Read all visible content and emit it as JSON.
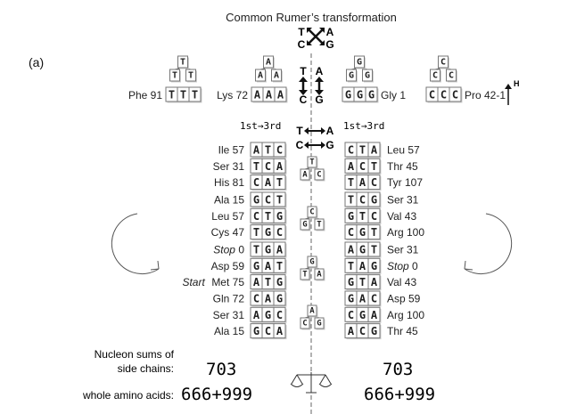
{
  "title": "Common Rumer’s transformation",
  "panel_label": "(a)",
  "title_bases": {
    "tl": "T",
    "tr": "A",
    "bl": "C",
    "br": "G"
  },
  "center_pairs": {
    "tl": "T",
    "tr": "A",
    "bl": "C",
    "br": "G"
  },
  "h_pairs": {
    "t": "T",
    "a": "A",
    "c": "C",
    "g": "G"
  },
  "h_label": "H",
  "col_header_left": "1st→3rd",
  "col_header_right": "1st→3rd",
  "top_codons": [
    {
      "label": "Phe 91",
      "codon": "TTT",
      "tree": [
        "T",
        "T",
        "T"
      ]
    },
    {
      "label": "Lys 72",
      "codon": "AAA",
      "tree": [
        "A",
        "A",
        "A"
      ]
    },
    {
      "label": "Gly 1",
      "codon": "GGG",
      "tree": [
        "G",
        "G",
        "G"
      ]
    },
    {
      "label": "Pro 42-1",
      "codon": "CCC",
      "tree": [
        "C",
        "C",
        "C"
      ]
    }
  ],
  "groups": [
    {
      "rows": [
        {
          "l_pre": "",
          "l_name": "Ile 57",
          "l_codon": "ATC",
          "r_codon": "CTA",
          "r_name": "Leu 57"
        },
        {
          "l_pre": "",
          "l_name": "Ser 31",
          "l_codon": "TCA",
          "r_codon": "ACT",
          "r_name": "Thr 45"
        },
        {
          "l_pre": "",
          "l_name": "His 81",
          "l_codon": "CAT",
          "r_codon": "TAC",
          "r_name": "Tyr 107"
        }
      ],
      "tree": [
        "T",
        "A",
        "C"
      ]
    },
    {
      "rows": [
        {
          "l_pre": "",
          "l_name": "Ala 15",
          "l_codon": "GCT",
          "r_codon": "TCG",
          "r_name": "Ser 31"
        },
        {
          "l_pre": "",
          "l_name": "Leu 57",
          "l_codon": "CTG",
          "r_codon": "GTC",
          "r_name": "Val 43"
        },
        {
          "l_pre": "",
          "l_name": "Cys 47",
          "l_codon": "TGC",
          "r_codon": "CGT",
          "r_name": "Arg 100"
        }
      ],
      "tree": [
        "C",
        "G",
        "T"
      ]
    },
    {
      "rows": [
        {
          "l_pre": "",
          "l_name": "Stop 0",
          "l_codon": "TGA",
          "r_codon": "AGT",
          "r_name": "Ser 31"
        },
        {
          "l_pre": "",
          "l_name": "Asp 59",
          "l_codon": "GAT",
          "r_codon": "TAG",
          "r_name": "Stop 0"
        },
        {
          "l_pre": "Start",
          "l_name": "Met 75",
          "l_codon": "ATG",
          "r_codon": "GTA",
          "r_name": "Val 43"
        }
      ],
      "tree": [
        "G",
        "T",
        "A"
      ]
    },
    {
      "rows": [
        {
          "l_pre": "",
          "l_name": "Gln 72",
          "l_codon": "CAG",
          "r_codon": "GAC",
          "r_name": "Asp 59"
        },
        {
          "l_pre": "",
          "l_name": "Ser 31",
          "l_codon": "AGC",
          "r_codon": "CGA",
          "r_name": "Arg 100"
        },
        {
          "l_pre": "",
          "l_name": "Ala 15",
          "l_codon": "GCA",
          "r_codon": "ACG",
          "r_name": "Thr 45"
        }
      ],
      "tree": [
        "A",
        "C",
        "G"
      ]
    }
  ],
  "sums": {
    "label_line1": "Nucleon sums of",
    "label_line2": "side chains:",
    "left_side": "703",
    "right_side": "703",
    "label_whole": "whole amino acids:",
    "left_whole": "666+999",
    "right_whole": "666+999"
  },
  "colors": {
    "line": "#555555",
    "box_border": "#777777",
    "text": "#222222"
  }
}
